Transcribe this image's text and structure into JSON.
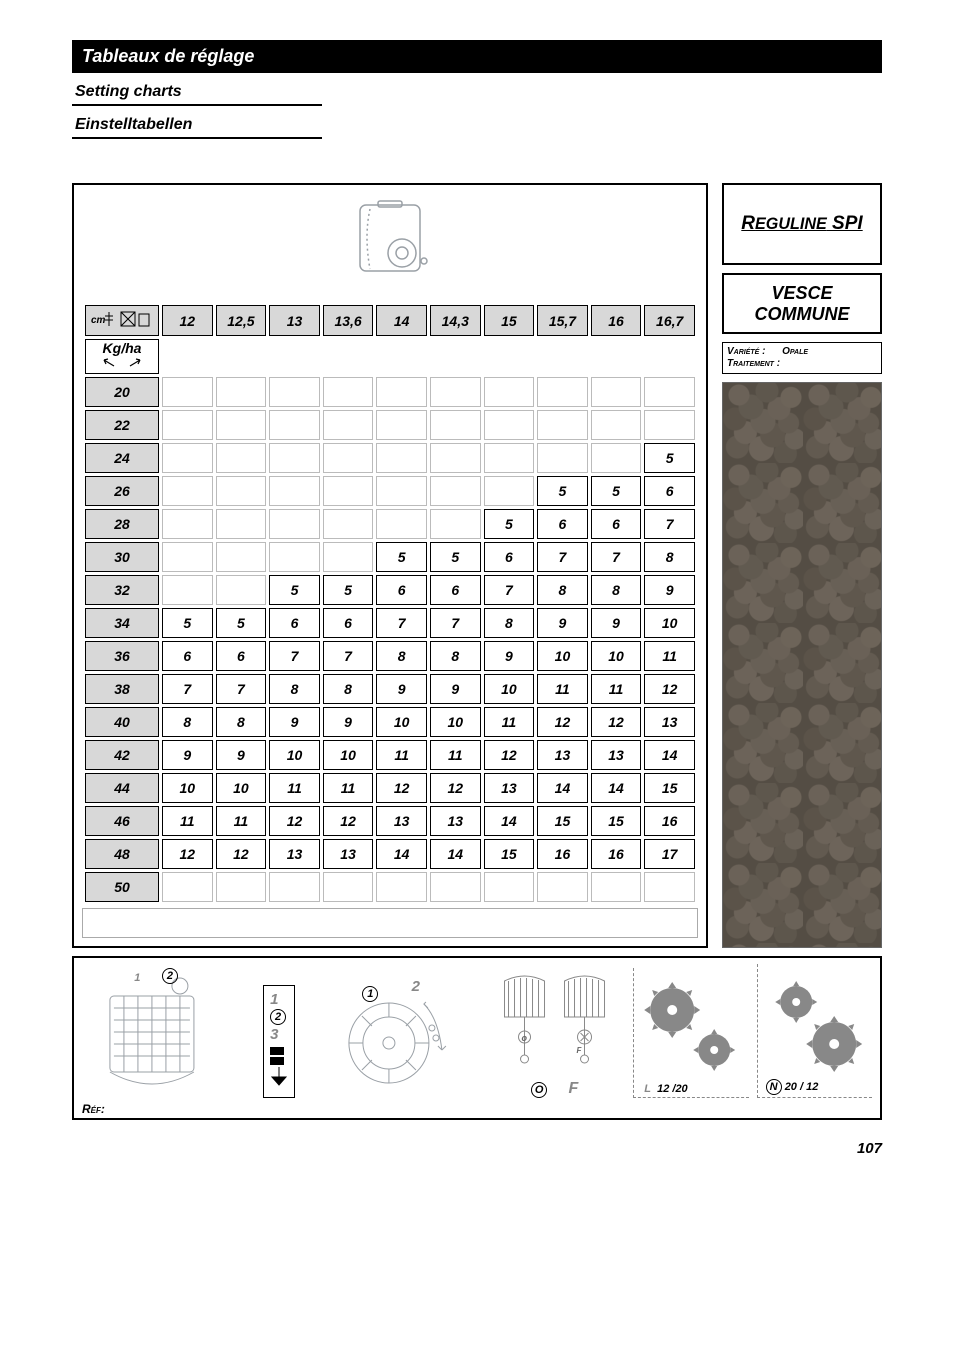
{
  "headings": {
    "title_fr": "Tableaux de réglage",
    "title_en": "Setting charts",
    "title_de": "Einstelltabellen"
  },
  "product": {
    "name_html": "R<span style='font-size:0.85em'>EGULINE</span> SPI"
  },
  "crop": {
    "line1": "VESCE",
    "line2": "COMMUNE"
  },
  "variety_box": {
    "label_var": "Variété :",
    "value_var": "Opale",
    "label_trt": "Traitement :",
    "value_trt": ""
  },
  "chart": {
    "row_unit_label": "Kg/ha",
    "corner_label_cm": "cm",
    "col_headers": [
      "12",
      "12,5",
      "13",
      "13,6",
      "14",
      "14,3",
      "15",
      "15,7",
      "16",
      "16,7"
    ],
    "row_headers": [
      "20",
      "22",
      "24",
      "26",
      "28",
      "30",
      "32",
      "34",
      "36",
      "38",
      "40",
      "42",
      "44",
      "46",
      "48",
      "50"
    ],
    "cells": [
      [
        "",
        "",
        "",
        "",
        "",
        "",
        "",
        "",
        "",
        ""
      ],
      [
        "",
        "",
        "",
        "",
        "",
        "",
        "",
        "",
        "",
        ""
      ],
      [
        "",
        "",
        "",
        "",
        "",
        "",
        "",
        "",
        "",
        "5"
      ],
      [
        "",
        "",
        "",
        "",
        "",
        "",
        "",
        "5",
        "5",
        "6"
      ],
      [
        "",
        "",
        "",
        "",
        "",
        "",
        "5",
        "6",
        "6",
        "7"
      ],
      [
        "",
        "",
        "",
        "",
        "5",
        "5",
        "6",
        "7",
        "7",
        "8"
      ],
      [
        "",
        "",
        "5",
        "5",
        "6",
        "6",
        "7",
        "8",
        "8",
        "9"
      ],
      [
        "5",
        "5",
        "6",
        "6",
        "7",
        "7",
        "8",
        "9",
        "9",
        "10"
      ],
      [
        "6",
        "6",
        "7",
        "7",
        "8",
        "8",
        "9",
        "10",
        "10",
        "11"
      ],
      [
        "7",
        "7",
        "8",
        "8",
        "9",
        "9",
        "10",
        "11",
        "11",
        "12"
      ],
      [
        "8",
        "8",
        "9",
        "9",
        "10",
        "10",
        "11",
        "12",
        "12",
        "13"
      ],
      [
        "9",
        "9",
        "10",
        "10",
        "11",
        "11",
        "12",
        "13",
        "13",
        "14"
      ],
      [
        "10",
        "10",
        "11",
        "11",
        "12",
        "12",
        "13",
        "14",
        "14",
        "15"
      ],
      [
        "11",
        "11",
        "12",
        "12",
        "13",
        "13",
        "14",
        "15",
        "15",
        "16"
      ],
      [
        "12",
        "12",
        "13",
        "13",
        "14",
        "14",
        "15",
        "16",
        "16",
        "17"
      ],
      [
        "",
        "",
        "",
        "",
        "",
        "",
        "",
        "",
        "",
        ""
      ]
    ]
  },
  "diagrams": {
    "shutter": {
      "n1": "1",
      "n2": "2"
    },
    "scale": {
      "n1": "1",
      "n2": "2",
      "n3": "3"
    },
    "wheel": {
      "n1": "1",
      "n2": "2"
    },
    "flap": {
      "O": "O",
      "F": "F"
    },
    "gearL": {
      "letter": "L",
      "ratio": "12 /20"
    },
    "gearN": {
      "letter": "N",
      "ratio": "20 / 12"
    },
    "ref_label": "Réf:"
  },
  "page_number": "107",
  "colors": {
    "header_bg": "#d8d8d8",
    "gray_icon": "#9aa0a6"
  }
}
